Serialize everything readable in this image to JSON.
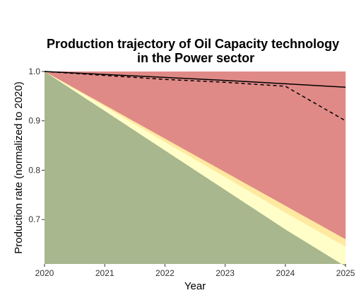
{
  "chart_data": {
    "type": "area",
    "title_lines": [
      "Production trajectory of Oil Capacity technology",
      "in the Power sector"
    ],
    "xlabel": "Year",
    "ylabel": "Production rate (normalized to 2020)",
    "x": [
      2020,
      2021,
      2022,
      2023,
      2024,
      2025
    ],
    "x_ticks": [
      "2020",
      "2021",
      "2022",
      "2023",
      "2024",
      "2025"
    ],
    "y_ticks": [
      "0.7",
      "0.8",
      "0.9",
      "1.0"
    ],
    "y_tick_values": [
      0.7,
      0.8,
      0.9,
      1.0
    ],
    "xlim": [
      2020,
      2025
    ],
    "ylim": [
      0.61,
      1.0
    ],
    "grid": false,
    "legend": "none",
    "bands": [
      {
        "color": "#a8b78d",
        "upper": [
          1.0,
          0.92,
          0.84,
          0.76,
          0.68,
          0.605
        ]
      },
      {
        "color": "#fffec8",
        "upper": [
          1.0,
          0.929,
          0.857,
          0.786,
          0.714,
          0.645
        ]
      },
      {
        "color": "#ffe9a0",
        "upper": [
          1.0,
          0.932,
          0.864,
          0.796,
          0.728,
          0.66
        ]
      },
      {
        "color": "#e08a87",
        "upper": [
          1.0,
          1.0,
          1.0,
          1.0,
          1.0,
          1.0
        ]
      }
    ],
    "series": [
      {
        "style": "solid",
        "color": "#000000",
        "values": [
          1.0,
          0.994,
          0.988,
          0.982,
          0.975,
          0.968
        ]
      },
      {
        "style": "dashed",
        "color": "#000000",
        "values": [
          1.0,
          0.992,
          0.984,
          0.978,
          0.97,
          0.9
        ]
      }
    ]
  }
}
